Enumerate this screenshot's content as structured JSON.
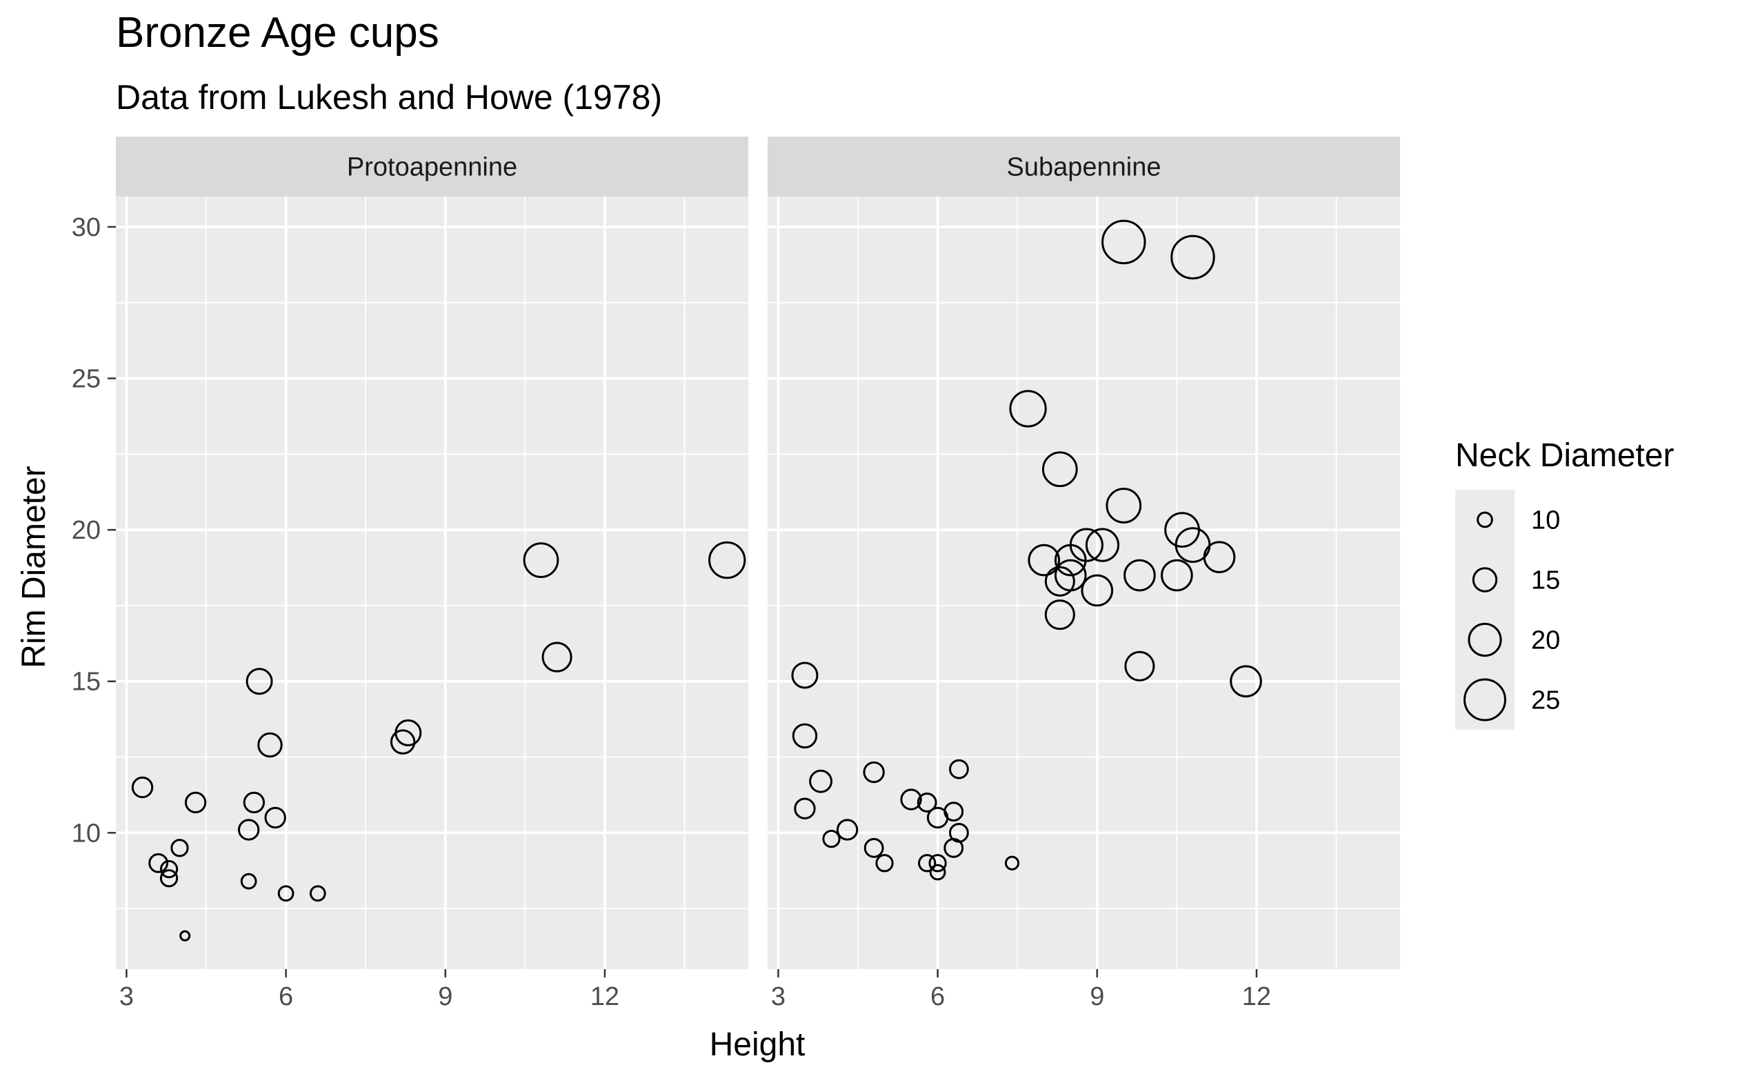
{
  "chart_data": {
    "type": "scatter",
    "title": "Bronze Age cups",
    "subtitle": "Data from Lukesh and Howe (1978)",
    "xlabel": "Height",
    "ylabel": "Rim Diameter",
    "xlim": [
      2.8,
      14.7
    ],
    "ylim": [
      5.5,
      31
    ],
    "x_ticks": [
      3,
      6,
      9,
      12
    ],
    "y_ticks": [
      10,
      15,
      20,
      25,
      30
    ],
    "grid": true,
    "size_variable": "Neck Diameter",
    "legend": {
      "title": "Neck Diameter",
      "position": "right",
      "entries": [
        10,
        15,
        20,
        25
      ]
    },
    "panels": [
      {
        "name": "Protoapennine",
        "points": [
          {
            "x": 3.3,
            "y": 11.5,
            "size": 13
          },
          {
            "x": 3.6,
            "y": 9.0,
            "size": 12
          },
          {
            "x": 3.8,
            "y": 8.8,
            "size": 11
          },
          {
            "x": 3.8,
            "y": 8.5,
            "size": 11
          },
          {
            "x": 4.0,
            "y": 9.5,
            "size": 11
          },
          {
            "x": 4.1,
            "y": 6.6,
            "size": 7
          },
          {
            "x": 4.3,
            "y": 11.0,
            "size": 13
          },
          {
            "x": 5.3,
            "y": 10.1,
            "size": 13
          },
          {
            "x": 5.3,
            "y": 8.4,
            "size": 10
          },
          {
            "x": 5.4,
            "y": 11.0,
            "size": 13
          },
          {
            "x": 5.5,
            "y": 15.0,
            "size": 16
          },
          {
            "x": 5.7,
            "y": 12.9,
            "size": 15
          },
          {
            "x": 5.8,
            "y": 10.5,
            "size": 13
          },
          {
            "x": 6.0,
            "y": 8.0,
            "size": 10
          },
          {
            "x": 6.6,
            "y": 8.0,
            "size": 10
          },
          {
            "x": 8.2,
            "y": 13.0,
            "size": 15
          },
          {
            "x": 8.3,
            "y": 13.3,
            "size": 16
          },
          {
            "x": 10.8,
            "y": 19.0,
            "size": 21
          },
          {
            "x": 11.1,
            "y": 15.8,
            "size": 18
          },
          {
            "x": 14.3,
            "y": 19.0,
            "size": 22
          }
        ]
      },
      {
        "name": "Subapennine",
        "points": [
          {
            "x": 3.5,
            "y": 15.2,
            "size": 16
          },
          {
            "x": 3.5,
            "y": 13.2,
            "size": 15
          },
          {
            "x": 3.5,
            "y": 10.8,
            "size": 13
          },
          {
            "x": 3.8,
            "y": 11.7,
            "size": 14
          },
          {
            "x": 4.0,
            "y": 9.8,
            "size": 11
          },
          {
            "x": 4.3,
            "y": 10.1,
            "size": 13
          },
          {
            "x": 4.8,
            "y": 12.0,
            "size": 13
          },
          {
            "x": 4.8,
            "y": 9.5,
            "size": 12
          },
          {
            "x": 5.0,
            "y": 9.0,
            "size": 11
          },
          {
            "x": 5.5,
            "y": 11.1,
            "size": 13
          },
          {
            "x": 5.8,
            "y": 11.0,
            "size": 12
          },
          {
            "x": 5.8,
            "y": 9.0,
            "size": 11
          },
          {
            "x": 6.0,
            "y": 10.5,
            "size": 13
          },
          {
            "x": 6.0,
            "y": 9.0,
            "size": 11
          },
          {
            "x": 6.0,
            "y": 8.7,
            "size": 10
          },
          {
            "x": 6.3,
            "y": 10.7,
            "size": 12
          },
          {
            "x": 6.3,
            "y": 9.5,
            "size": 12
          },
          {
            "x": 6.4,
            "y": 12.1,
            "size": 12
          },
          {
            "x": 6.4,
            "y": 10.0,
            "size": 12
          },
          {
            "x": 7.4,
            "y": 9.0,
            "size": 9
          },
          {
            "x": 7.7,
            "y": 24.0,
            "size": 22
          },
          {
            "x": 8.0,
            "y": 19.0,
            "size": 19
          },
          {
            "x": 8.3,
            "y": 22.0,
            "size": 21
          },
          {
            "x": 8.3,
            "y": 18.3,
            "size": 18
          },
          {
            "x": 8.3,
            "y": 17.2,
            "size": 18
          },
          {
            "x": 8.5,
            "y": 19.0,
            "size": 19
          },
          {
            "x": 8.5,
            "y": 18.5,
            "size": 19
          },
          {
            "x": 8.8,
            "y": 19.5,
            "size": 20
          },
          {
            "x": 9.0,
            "y": 18.0,
            "size": 19
          },
          {
            "x": 9.1,
            "y": 19.5,
            "size": 20
          },
          {
            "x": 9.5,
            "y": 29.5,
            "size": 26
          },
          {
            "x": 9.5,
            "y": 20.8,
            "size": 21
          },
          {
            "x": 9.8,
            "y": 18.5,
            "size": 19
          },
          {
            "x": 9.8,
            "y": 15.5,
            "size": 18
          },
          {
            "x": 10.5,
            "y": 18.5,
            "size": 19
          },
          {
            "x": 10.6,
            "y": 20.0,
            "size": 21
          },
          {
            "x": 10.8,
            "y": 19.5,
            "size": 21
          },
          {
            "x": 10.8,
            "y": 29.0,
            "size": 26
          },
          {
            "x": 11.3,
            "y": 19.1,
            "size": 19
          },
          {
            "x": 11.8,
            "y": 15.0,
            "size": 19
          }
        ]
      }
    ]
  }
}
